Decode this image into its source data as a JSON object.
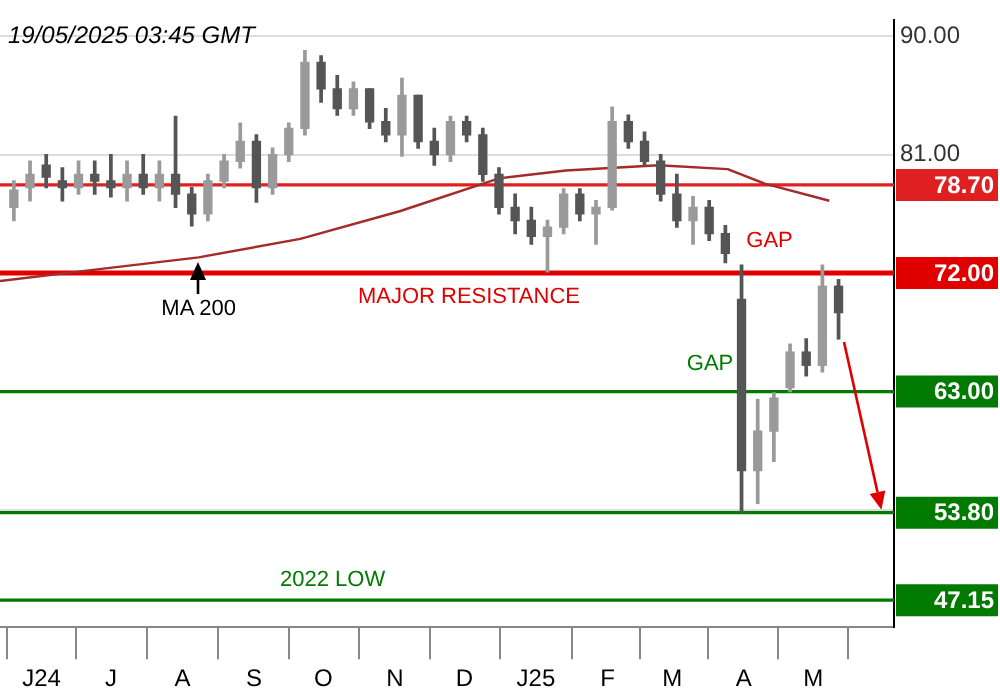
{
  "chart_data": {
    "type": "candlestick",
    "x": [
      "2024-05-20",
      "2024-05-27",
      "2024-06-03",
      "2024-06-10",
      "2024-06-17",
      "2024-06-24",
      "2024-07-01",
      "2024-07-08",
      "2024-07-15",
      "2024-07-22",
      "2024-07-29",
      "2024-08-05",
      "2024-08-12",
      "2024-08-19",
      "2024-08-26",
      "2024-09-02",
      "2024-09-09",
      "2024-09-16",
      "2024-09-23",
      "2024-09-30",
      "2024-10-07",
      "2024-10-14",
      "2024-10-21",
      "2024-10-28",
      "2024-11-04",
      "2024-11-11",
      "2024-11-18",
      "2024-11-25",
      "2024-12-02",
      "2024-12-09",
      "2024-12-16",
      "2024-12-23",
      "2024-12-30",
      "2025-01-06",
      "2025-01-13",
      "2025-01-20",
      "2025-01-27",
      "2025-02-03",
      "2025-02-10",
      "2025-02-17",
      "2025-02-24",
      "2025-03-03",
      "2025-03-10",
      "2025-03-17",
      "2025-03-24",
      "2025-03-31",
      "2025-04-07",
      "2025-04-14",
      "2025-04-21",
      "2025-04-28",
      "2025-05-05",
      "2025-05-12"
    ],
    "ohlc": [
      [
        77.0,
        79.0,
        76.0,
        78.3
      ],
      [
        78.5,
        80.5,
        77.5,
        79.5
      ],
      [
        80.2,
        81.0,
        78.5,
        79.3
      ],
      [
        79.0,
        80.0,
        77.5,
        78.5
      ],
      [
        78.5,
        80.5,
        78.0,
        79.5
      ],
      [
        79.5,
        80.5,
        78.0,
        79.0
      ],
      [
        79.0,
        81.0,
        77.8,
        78.5
      ],
      [
        78.5,
        80.5,
        77.5,
        79.5
      ],
      [
        79.5,
        81.0,
        78.0,
        78.5
      ],
      [
        78.5,
        80.5,
        77.5,
        79.5
      ],
      [
        79.5,
        83.9,
        77.0,
        78.0
      ],
      [
        78.0,
        78.5,
        75.6,
        76.5
      ],
      [
        76.5,
        79.5,
        76.0,
        79.0
      ],
      [
        79.0,
        81.0,
        78.5,
        80.5
      ],
      [
        80.5,
        83.4,
        80.0,
        82.0
      ],
      [
        82.0,
        82.5,
        77.4,
        78.5
      ],
      [
        78.5,
        81.5,
        78.0,
        81.0
      ],
      [
        81.0,
        83.4,
        80.5,
        83.0
      ],
      [
        83.0,
        88.9,
        82.5,
        88.0
      ],
      [
        88.0,
        88.5,
        85.0,
        86.0
      ],
      [
        86.0,
        87.0,
        84.0,
        84.5
      ],
      [
        84.5,
        86.5,
        84.0,
        86.0
      ],
      [
        86.0,
        86.0,
        83.0,
        83.5
      ],
      [
        83.5,
        84.5,
        82.0,
        82.5
      ],
      [
        82.5,
        86.8,
        80.9,
        85.5
      ],
      [
        85.5,
        85.5,
        81.5,
        82.0
      ],
      [
        82.0,
        83.0,
        80.2,
        81.0
      ],
      [
        81.0,
        83.9,
        80.5,
        83.5
      ],
      [
        83.5,
        83.9,
        82.0,
        82.5
      ],
      [
        82.5,
        83.0,
        79.0,
        79.5
      ],
      [
        79.5,
        80.0,
        76.5,
        77.0
      ],
      [
        77.0,
        78.0,
        75.0,
        76.0
      ],
      [
        76.0,
        77.0,
        74.2,
        74.8
      ],
      [
        74.8,
        76.0,
        72.1,
        75.5
      ],
      [
        75.5,
        78.4,
        75.0,
        78.0
      ],
      [
        78.0,
        78.4,
        76.0,
        76.5
      ],
      [
        76.5,
        77.5,
        74.2,
        77.0
      ],
      [
        77.0,
        84.6,
        76.8,
        83.5
      ],
      [
        83.5,
        84.0,
        81.5,
        82.0
      ],
      [
        82.0,
        82.7,
        80.2,
        80.5
      ],
      [
        80.5,
        81.0,
        77.5,
        78.0
      ],
      [
        78.0,
        79.5,
        75.5,
        76.0
      ],
      [
        76.0,
        77.8,
        74.2,
        77.0
      ],
      [
        77.0,
        77.5,
        74.5,
        75.0
      ],
      [
        75.0,
        75.6,
        72.8,
        73.5
      ],
      [
        70.0,
        72.6,
        53.8,
        57.0
      ],
      [
        57.0,
        62.4,
        54.5,
        60.0
      ],
      [
        60.0,
        62.9,
        57.7,
        62.5
      ],
      [
        63.3,
        66.6,
        63.0,
        66.0
      ],
      [
        66.0,
        67.0,
        64.2,
        65.0
      ],
      [
        65.0,
        72.6,
        64.5,
        71.0
      ],
      [
        71.0,
        71.5,
        67.0,
        69.0
      ]
    ],
    "colors": [
      "#9a9a9a",
      "#9a9a9a",
      "#555555",
      "#555555",
      "#9a9a9a",
      "#555555",
      "#555555",
      "#9a9a9a",
      "#555555",
      "#9a9a9a",
      "#555555",
      "#555555",
      "#9a9a9a",
      "#9a9a9a",
      "#9a9a9a",
      "#555555",
      "#9a9a9a",
      "#9a9a9a",
      "#9a9a9a",
      "#555555",
      "#555555",
      "#9a9a9a",
      "#555555",
      "#555555",
      "#9a9a9a",
      "#555555",
      "#555555",
      "#9a9a9a",
      "#555555",
      "#555555",
      "#555555",
      "#555555",
      "#555555",
      "#9a9a9a",
      "#9a9a9a",
      "#555555",
      "#9a9a9a",
      "#9a9a9a",
      "#555555",
      "#555555",
      "#555555",
      "#555555",
      "#9a9a9a",
      "#555555",
      "#555555",
      "#555555",
      "#9a9a9a",
      "#9a9a9a",
      "#9a9a9a",
      "#555555",
      "#9a9a9a",
      "#555555"
    ],
    "series": [
      {
        "type": "line",
        "color": "#a52a2a",
        "x": [
          "2024-05-14",
          "2024-06-26",
          "2024-08-08",
          "2024-09-21",
          "2024-11-03",
          "2024-12-16",
          "2025-01-14",
          "2025-02-23",
          "2025-03-25",
          "2025-04-10",
          "2025-05-08"
        ],
        "values": [
          71.4,
          72.3,
          73.2,
          74.6,
          76.7,
          79.2,
          79.8,
          80.2,
          79.9,
          78.8,
          77.5
        ]
      }
    ],
    "xlim": [
      "2024-05-14",
      "2025-06-05"
    ],
    "xticks": [
      {
        "value": "2024-06-01",
        "label": "J24"
      },
      {
        "value": "2024-07-01",
        "label": "J"
      },
      {
        "value": "2024-08-01",
        "label": "A"
      },
      {
        "value": "2024-09-01",
        "label": "S"
      },
      {
        "value": "2024-10-01",
        "label": "O"
      },
      {
        "value": "2024-11-01",
        "label": "N"
      },
      {
        "value": "2024-12-01",
        "label": "D"
      },
      {
        "value": "2025-01-01",
        "label": "J25"
      },
      {
        "value": "2025-02-01",
        "label": "F"
      },
      {
        "value": "2025-03-01",
        "label": "M"
      },
      {
        "value": "2025-04-01",
        "label": "A"
      },
      {
        "value": "2025-05-01",
        "label": "M"
      }
    ],
    "ylim": [
      45.1,
      91.2
    ],
    "yticks": [
      {
        "value": 54,
        "label": null
      },
      {
        "value": 63,
        "label": null
      },
      {
        "value": 72,
        "label": null
      },
      {
        "value": 81,
        "label": "81.00"
      },
      {
        "value": 90,
        "label": "90.00"
      }
    ],
    "grid": "y",
    "legend": false,
    "ref_lines": [
      {
        "axis": "y",
        "value": 78.7,
        "label": "78.70",
        "color": "#e02020"
      },
      {
        "axis": "y",
        "value": 72,
        "label": "72.00",
        "color": "#e00000"
      },
      {
        "axis": "y",
        "value": 63,
        "label": "63.00",
        "color": "#007a00"
      },
      {
        "axis": "y",
        "value": 53.8,
        "label": "53.80",
        "color": "#007a00"
      },
      {
        "axis": "y",
        "value": 47.15,
        "label": "47.15",
        "color": "#007a00"
      }
    ],
    "annotations": [
      "19/05/2025 03:45 GMT",
      {
        "text": "MAJOR RESISTANCE",
        "x": "2024-12-03",
        "y": 72
      },
      {
        "text": "MA 200",
        "x": "2024-08-08",
        "y": 73.2
      },
      {
        "text": "GAP",
        "x": "2025-03-31",
        "y": 72.6
      },
      {
        "text": "GAP",
        "x": "2025-04-21",
        "y": 63.3
      },
      {
        "text": "2022 LOW",
        "x": "2024-10-05",
        "y": 47.15
      }
    ]
  }
}
